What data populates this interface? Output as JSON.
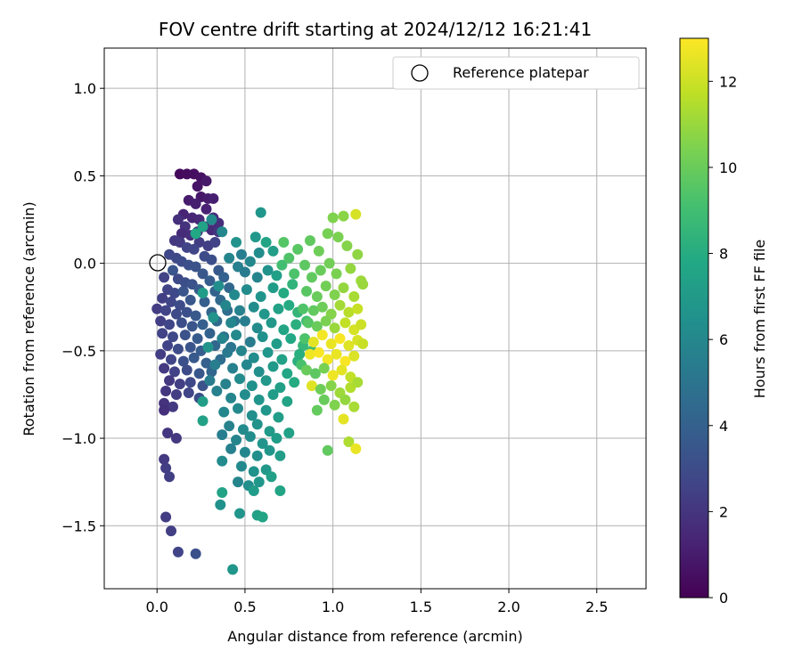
{
  "chart_data": {
    "type": "scatter",
    "title": "FOV centre drift starting at 2024/12/12 16:21:41",
    "xlabel": "Angular distance from reference (arcmin)",
    "ylabel": "Rotation from reference (arcmin)",
    "xlim": [
      -0.3,
      2.78
    ],
    "ylim": [
      -1.86,
      1.23
    ],
    "xticks": [
      0.0,
      0.5,
      1.0,
      1.5,
      2.0,
      2.5
    ],
    "xtick_labels": [
      "0.0",
      "0.5",
      "1.0",
      "1.5",
      "2.0",
      "2.5"
    ],
    "yticks": [
      1.0,
      0.5,
      0.0,
      -0.5,
      -1.0,
      -1.5
    ],
    "ytick_labels": [
      "1.0",
      "0.5",
      "0.0",
      "−0.5",
      "−1.0",
      "−1.5"
    ],
    "grid": true,
    "legend": {
      "position": "top-right",
      "entries": [
        "Reference platepar"
      ]
    },
    "reference_point": {
      "x": 0.0,
      "y": 0.0,
      "marker": "open-circle"
    },
    "colorbar": {
      "label": "Hours from first FF file",
      "range": [
        0,
        13
      ],
      "ticks": [
        0,
        2,
        4,
        6,
        8,
        10,
        12
      ],
      "tick_labels": [
        "0",
        "2",
        "4",
        "6",
        "8",
        "10",
        "12"
      ],
      "colormap": "viridis"
    },
    "points": [
      [
        0.13,
        0.51,
        0.3
      ],
      [
        0.17,
        0.51,
        0.4
      ],
      [
        0.21,
        0.51,
        0.5
      ],
      [
        0.25,
        0.49,
        0.6
      ],
      [
        0.23,
        0.44,
        0.7
      ],
      [
        0.28,
        0.47,
        0.9
      ],
      [
        0.25,
        0.38,
        0.8
      ],
      [
        0.29,
        0.37,
        1.0
      ],
      [
        0.32,
        0.37,
        1.1
      ],
      [
        0.18,
        0.36,
        1.0
      ],
      [
        0.22,
        0.34,
        1.1
      ],
      [
        0.28,
        0.31,
        1.2
      ],
      [
        0.15,
        0.28,
        1.3
      ],
      [
        0.2,
        0.26,
        1.4
      ],
      [
        0.24,
        0.25,
        1.5
      ],
      [
        0.32,
        0.26,
        1.6
      ],
      [
        0.35,
        0.23,
        1.7
      ],
      [
        0.12,
        0.25,
        1.8
      ],
      [
        0.16,
        0.21,
        1.9
      ],
      [
        0.27,
        0.21,
        1.5
      ],
      [
        0.31,
        0.19,
        1.6
      ],
      [
        0.14,
        0.17,
        1.6
      ],
      [
        0.19,
        0.16,
        1.7
      ],
      [
        0.23,
        0.18,
        1.8
      ],
      [
        0.35,
        0.18,
        2.0
      ],
      [
        0.1,
        0.13,
        2.1
      ],
      [
        0.13,
        0.12,
        2.2
      ],
      [
        0.24,
        0.12,
        2.3
      ],
      [
        0.29,
        0.1,
        2.4
      ],
      [
        0.33,
        0.12,
        2.5
      ],
      [
        0.17,
        0.09,
        2.6
      ],
      [
        0.21,
        0.08,
        2.7
      ],
      [
        0.07,
        0.05,
        2.8
      ],
      [
        0.11,
        0.03,
        2.9
      ],
      [
        0.27,
        0.04,
        3.0
      ],
      [
        0.31,
        0.02,
        3.1
      ],
      [
        0.14,
        0.01,
        3.0
      ],
      [
        0.18,
        -0.01,
        3.2
      ],
      [
        0.22,
        -0.02,
        3.3
      ],
      [
        0.09,
        -0.04,
        3.4
      ],
      [
        0.26,
        -0.06,
        3.5
      ],
      [
        0.35,
        -0.04,
        3.6
      ],
      [
        0.04,
        -0.08,
        2.5
      ],
      [
        0.12,
        -0.09,
        2.9
      ],
      [
        0.16,
        -0.11,
        3.1
      ],
      [
        0.2,
        -0.12,
        3.3
      ],
      [
        0.3,
        -0.1,
        3.8
      ],
      [
        0.38,
        -0.08,
        4.0
      ],
      [
        0.06,
        -0.15,
        2.6
      ],
      [
        0.1,
        -0.17,
        2.8
      ],
      [
        0.15,
        -0.16,
        3.4
      ],
      [
        0.24,
        -0.15,
        3.7
      ],
      [
        0.33,
        -0.16,
        4.1
      ],
      [
        0.41,
        -0.14,
        4.3
      ],
      [
        0.03,
        -0.2,
        2.4
      ],
      [
        0.08,
        -0.22,
        2.7
      ],
      [
        0.13,
        -0.24,
        3.0
      ],
      [
        0.19,
        -0.21,
        3.5
      ],
      [
        0.27,
        -0.22,
        3.9
      ],
      [
        0.36,
        -0.21,
        4.4
      ],
      [
        0.0,
        -0.26,
        2.3
      ],
      [
        0.05,
        -0.27,
        2.6
      ],
      [
        0.11,
        -0.29,
        2.9
      ],
      [
        0.17,
        -0.28,
        3.2
      ],
      [
        0.22,
        -0.3,
        3.6
      ],
      [
        0.31,
        -0.28,
        4.2
      ],
      [
        0.4,
        -0.27,
        4.6
      ],
      [
        0.02,
        -0.33,
        2.4
      ],
      [
        0.07,
        -0.35,
        2.7
      ],
      [
        0.14,
        -0.34,
        3.1
      ],
      [
        0.2,
        -0.36,
        3.4
      ],
      [
        0.26,
        -0.35,
        3.9
      ],
      [
        0.34,
        -0.33,
        4.5
      ],
      [
        0.44,
        -0.33,
        5.0
      ],
      [
        0.03,
        -0.4,
        2.5
      ],
      [
        0.09,
        -0.42,
        2.8
      ],
      [
        0.16,
        -0.41,
        3.3
      ],
      [
        0.23,
        -0.43,
        3.7
      ],
      [
        0.3,
        -0.4,
        4.1
      ],
      [
        0.38,
        -0.42,
        4.8
      ],
      [
        0.06,
        -0.47,
        2.6
      ],
      [
        0.12,
        -0.49,
        3.0
      ],
      [
        0.19,
        -0.48,
        3.4
      ],
      [
        0.25,
        -0.5,
        3.8
      ],
      [
        0.33,
        -0.47,
        4.3
      ],
      [
        0.42,
        -0.48,
        5.1
      ],
      [
        0.02,
        -0.52,
        2.3
      ],
      [
        0.08,
        -0.55,
        2.7
      ],
      [
        0.15,
        -0.56,
        3.2
      ],
      [
        0.21,
        -0.54,
        3.6
      ],
      [
        0.28,
        -0.57,
        4.0
      ],
      [
        0.36,
        -0.55,
        4.6
      ],
      [
        0.04,
        -0.6,
        2.2
      ],
      [
        0.1,
        -0.62,
        2.5
      ],
      [
        0.17,
        -0.61,
        3.0
      ],
      [
        0.24,
        -0.63,
        3.5
      ],
      [
        0.31,
        -0.62,
        4.2
      ],
      [
        0.07,
        -0.67,
        2.1
      ],
      [
        0.13,
        -0.69,
        2.4
      ],
      [
        0.19,
        -0.68,
        2.8
      ],
      [
        0.26,
        -0.7,
        3.3
      ],
      [
        0.05,
        -0.73,
        2.0
      ],
      [
        0.11,
        -0.75,
        2.3
      ],
      [
        0.18,
        -0.74,
        2.7
      ],
      [
        0.24,
        -0.77,
        3.1
      ],
      [
        0.04,
        -0.8,
        1.9
      ],
      [
        0.09,
        -0.82,
        2.2
      ],
      [
        0.04,
        -0.84,
        1.8
      ],
      [
        0.06,
        -0.97,
        2.0
      ],
      [
        0.11,
        -1.0,
        2.1
      ],
      [
        0.04,
        -1.12,
        2.2
      ],
      [
        0.05,
        -1.17,
        2.3
      ],
      [
        0.07,
        -1.22,
        2.4
      ],
      [
        0.05,
        -1.45,
        2.3
      ],
      [
        0.08,
        -1.53,
        2.4
      ],
      [
        0.12,
        -1.65,
        2.6
      ],
      [
        0.22,
        -1.66,
        3.2
      ],
      [
        0.43,
        -1.75,
        6.8
      ],
      [
        0.22,
        0.17,
        7.8
      ],
      [
        0.26,
        0.21,
        7.5
      ],
      [
        0.31,
        0.25,
        6.2
      ],
      [
        0.37,
        0.18,
        6.0
      ],
      [
        0.45,
        0.12,
        6.6
      ],
      [
        0.48,
        0.05,
        5.5
      ],
      [
        0.59,
        0.29,
        6.8
      ],
      [
        0.56,
        0.15,
        6.9
      ],
      [
        0.62,
        0.12,
        7.6
      ],
      [
        0.66,
        0.07,
        7.2
      ],
      [
        0.58,
        0.06,
        6.3
      ],
      [
        0.53,
        0.01,
        6.0
      ],
      [
        0.41,
        0.03,
        5.9
      ],
      [
        0.46,
        -0.02,
        5.6
      ],
      [
        0.5,
        -0.05,
        5.4
      ],
      [
        0.57,
        -0.08,
        5.8
      ],
      [
        0.63,
        -0.04,
        6.6
      ],
      [
        0.68,
        -0.07,
        7.3
      ],
      [
        0.26,
        -0.17,
        7.1
      ],
      [
        0.35,
        -0.13,
        6.4
      ],
      [
        0.44,
        -0.18,
        6.1
      ],
      [
        0.51,
        -0.15,
        6.2
      ],
      [
        0.59,
        -0.19,
        6.7
      ],
      [
        0.66,
        -0.14,
        7.1
      ],
      [
        0.72,
        -0.17,
        7.9
      ],
      [
        0.77,
        -0.12,
        8.4
      ],
      [
        0.39,
        -0.24,
        5.9
      ],
      [
        0.47,
        -0.27,
        5.7
      ],
      [
        0.55,
        -0.25,
        6.3
      ],
      [
        0.61,
        -0.29,
        6.8
      ],
      [
        0.69,
        -0.26,
        7.4
      ],
      [
        0.75,
        -0.24,
        7.9
      ],
      [
        0.8,
        -0.28,
        8.5
      ],
      [
        0.32,
        -0.31,
        6.6
      ],
      [
        0.42,
        -0.34,
        6.0
      ],
      [
        0.5,
        -0.33,
        5.5
      ],
      [
        0.57,
        -0.37,
        6.2
      ],
      [
        0.65,
        -0.34,
        6.9
      ],
      [
        0.72,
        -0.38,
        7.6
      ],
      [
        0.79,
        -0.35,
        8.2
      ],
      [
        0.85,
        -0.33,
        8.9
      ],
      [
        0.37,
        -0.43,
        5.8
      ],
      [
        0.45,
        -0.41,
        6.1
      ],
      [
        0.53,
        -0.45,
        5.4
      ],
      [
        0.6,
        -0.42,
        6.5
      ],
      [
        0.68,
        -0.46,
        7.1
      ],
      [
        0.76,
        -0.43,
        7.8
      ],
      [
        0.83,
        -0.47,
        8.6
      ],
      [
        0.29,
        -0.48,
        6.7
      ],
      [
        0.4,
        -0.51,
        5.3
      ],
      [
        0.48,
        -0.5,
        5.9
      ],
      [
        0.55,
        -0.54,
        6.3
      ],
      [
        0.63,
        -0.51,
        6.8
      ],
      [
        0.71,
        -0.55,
        7.4
      ],
      [
        0.81,
        -0.52,
        8.1
      ],
      [
        0.88,
        -0.5,
        8.8
      ],
      [
        0.33,
        -0.58,
        5.5
      ],
      [
        0.43,
        -0.6,
        5.6
      ],
      [
        0.51,
        -0.58,
        6.0
      ],
      [
        0.58,
        -0.62,
        6.4
      ],
      [
        0.66,
        -0.59,
        7.0
      ],
      [
        0.74,
        -0.63,
        7.7
      ],
      [
        0.8,
        -0.56,
        8.2
      ],
      [
        0.3,
        -0.67,
        5.4
      ],
      [
        0.39,
        -0.69,
        5.7
      ],
      [
        0.47,
        -0.66,
        6.2
      ],
      [
        0.54,
        -0.7,
        6.5
      ],
      [
        0.62,
        -0.67,
        6.9
      ],
      [
        0.7,
        -0.71,
        7.3
      ],
      [
        0.78,
        -0.68,
        7.9
      ],
      [
        0.34,
        -0.73,
        5.6
      ],
      [
        0.42,
        -0.77,
        5.9
      ],
      [
        0.5,
        -0.75,
        6.3
      ],
      [
        0.58,
        -0.78,
        6.7
      ],
      [
        0.66,
        -0.75,
        7.1
      ],
      [
        0.74,
        -0.79,
        7.5
      ],
      [
        0.26,
        -0.79,
        7.2
      ],
      [
        0.38,
        -0.85,
        6.0
      ],
      [
        0.46,
        -0.83,
        6.1
      ],
      [
        0.54,
        -0.87,
        6.4
      ],
      [
        0.62,
        -0.84,
        6.8
      ],
      [
        0.69,
        -0.88,
        7.2
      ],
      [
        0.26,
        -0.9,
        7.4
      ],
      [
        0.41,
        -0.93,
        5.7
      ],
      [
        0.49,
        -0.95,
        6.2
      ],
      [
        0.57,
        -0.92,
        6.6
      ],
      [
        0.64,
        -0.96,
        7.0
      ],
      [
        0.37,
        -0.98,
        5.5
      ],
      [
        0.45,
        -1.01,
        5.8
      ],
      [
        0.53,
        -0.99,
        6.3
      ],
      [
        0.6,
        -1.03,
        6.7
      ],
      [
        0.68,
        -1.0,
        7.1
      ],
      [
        0.75,
        -0.97,
        7.4
      ],
      [
        0.42,
        -1.06,
        5.6
      ],
      [
        0.5,
        -1.08,
        6.0
      ],
      [
        0.57,
        -1.1,
        6.4
      ],
      [
        0.64,
        -1.07,
        6.8
      ],
      [
        0.7,
        -1.1,
        7.2
      ],
      [
        0.37,
        -1.13,
        6.2
      ],
      [
        0.48,
        -1.16,
        6.1
      ],
      [
        0.55,
        -1.19,
        6.5
      ],
      [
        0.62,
        -1.18,
        6.9
      ],
      [
        0.46,
        -1.25,
        5.9
      ],
      [
        0.52,
        -1.27,
        6.4
      ],
      [
        0.58,
        -1.25,
        6.8
      ],
      [
        0.65,
        -1.22,
        7.3
      ],
      [
        0.7,
        -1.3,
        7.6
      ],
      [
        0.37,
        -1.31,
        7.5
      ],
      [
        0.36,
        -1.38,
        6.5
      ],
      [
        0.47,
        -1.43,
        6.7
      ],
      [
        0.57,
        -1.44,
        7.3
      ],
      [
        0.6,
        -1.45,
        7.6
      ],
      [
        0.55,
        -1.3,
        7.1
      ],
      [
        0.72,
        0.12,
        9.5
      ],
      [
        0.71,
        -0.01,
        9.0
      ],
      [
        0.75,
        0.03,
        9.4
      ],
      [
        0.8,
        0.08,
        9.6
      ],
      [
        0.87,
        0.13,
        9.8
      ],
      [
        0.92,
        0.07,
        10.1
      ],
      [
        0.97,
        0.17,
        10.3
      ],
      [
        1.0,
        0.26,
        10.5
      ],
      [
        1.06,
        0.27,
        10.7
      ],
      [
        1.03,
        0.15,
        10.4
      ],
      [
        1.08,
        0.1,
        10.6
      ],
      [
        1.13,
        0.28,
        12.2
      ],
      [
        1.14,
        0.05,
        10.8
      ],
      [
        0.98,
        0.0,
        10.2
      ],
      [
        0.84,
        -0.01,
        9.7
      ],
      [
        0.78,
        -0.06,
        9.3
      ],
      [
        0.88,
        -0.08,
        9.8
      ],
      [
        0.93,
        -0.04,
        10.0
      ],
      [
        1.02,
        -0.06,
        10.4
      ],
      [
        1.1,
        -0.03,
        10.9
      ],
      [
        1.16,
        -0.1,
        11.1
      ],
      [
        0.85,
        -0.16,
        9.6
      ],
      [
        0.91,
        -0.19,
        10.0
      ],
      [
        0.96,
        -0.13,
        10.2
      ],
      [
        1.01,
        -0.18,
        10.5
      ],
      [
        1.06,
        -0.14,
        10.9
      ],
      [
        1.12,
        -0.19,
        11.3
      ],
      [
        1.17,
        -0.12,
        11.0
      ],
      [
        0.83,
        -0.26,
        9.4
      ],
      [
        0.89,
        -0.27,
        9.8
      ],
      [
        0.94,
        -0.25,
        10.1
      ],
      [
        0.99,
        -0.29,
        10.6
      ],
      [
        1.04,
        -0.24,
        11.2
      ],
      [
        1.09,
        -0.28,
        11.6
      ],
      [
        1.14,
        -0.26,
        11.9
      ],
      [
        0.86,
        -0.34,
        9.5
      ],
      [
        0.91,
        -0.36,
        10.0
      ],
      [
        0.96,
        -0.33,
        10.4
      ],
      [
        1.01,
        -0.37,
        11.0
      ],
      [
        1.07,
        -0.34,
        11.8
      ],
      [
        1.12,
        -0.38,
        12.2
      ],
      [
        1.16,
        -0.35,
        12.0
      ],
      [
        0.84,
        -0.43,
        9.3
      ],
      [
        0.89,
        -0.45,
        12.5
      ],
      [
        0.94,
        -0.41,
        12.8
      ],
      [
        0.99,
        -0.46,
        12.6
      ],
      [
        1.04,
        -0.43,
        12.9
      ],
      [
        1.09,
        -0.47,
        12.4
      ],
      [
        1.14,
        -0.44,
        12.2
      ],
      [
        1.17,
        -0.46,
        11.9
      ],
      [
        0.87,
        -0.52,
        12.7
      ],
      [
        0.92,
        -0.51,
        12.9
      ],
      [
        0.97,
        -0.55,
        12.8
      ],
      [
        1.02,
        -0.52,
        12.6
      ],
      [
        1.07,
        -0.56,
        12.9
      ],
      [
        1.12,
        -0.53,
        12.3
      ],
      [
        0.82,
        -0.58,
        9.2
      ],
      [
        0.85,
        -0.61,
        10.0
      ],
      [
        0.9,
        -0.63,
        9.7
      ],
      [
        0.95,
        -0.6,
        10.3
      ],
      [
        1.0,
        -0.64,
        12.7
      ],
      [
        1.05,
        -0.61,
        12.5
      ],
      [
        1.1,
        -0.65,
        11.8
      ],
      [
        0.88,
        -0.7,
        12.4
      ],
      [
        0.93,
        -0.72,
        10.1
      ],
      [
        0.99,
        -0.7,
        10.6
      ],
      [
        1.04,
        -0.74,
        11.1
      ],
      [
        1.1,
        -0.71,
        11.5
      ],
      [
        1.14,
        -0.68,
        11.3
      ],
      [
        0.95,
        -0.78,
        10.0
      ],
      [
        1.01,
        -0.81,
        10.5
      ],
      [
        1.07,
        -0.78,
        10.9
      ],
      [
        1.12,
        -0.82,
        11.3
      ],
      [
        0.91,
        -0.84,
        9.9
      ],
      [
        1.06,
        -0.89,
        12.5
      ],
      [
        0.97,
        -1.07,
        9.8
      ],
      [
        1.09,
        -1.02,
        11.4
      ],
      [
        1.13,
        -1.06,
        12.6
      ]
    ]
  }
}
